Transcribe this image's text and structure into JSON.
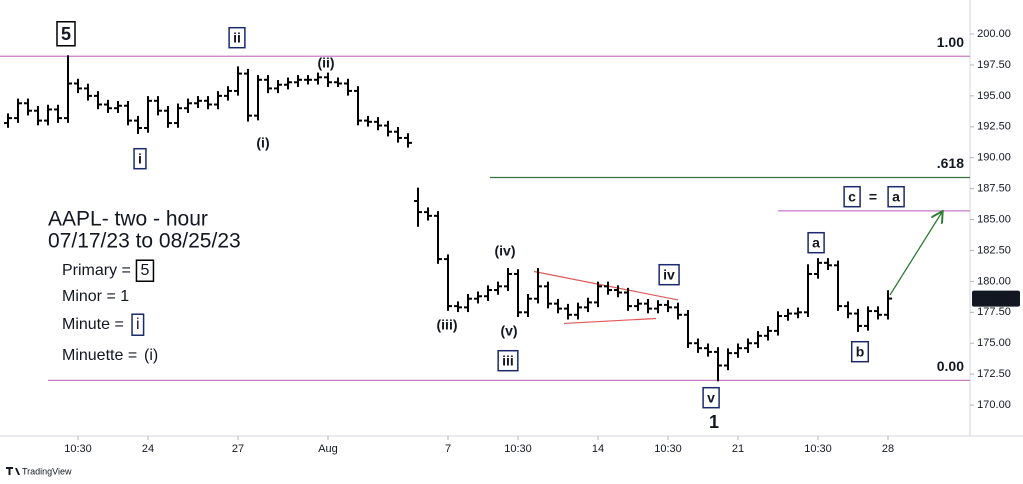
{
  "chart_data": {
    "type": "ohlc",
    "color": "#000000",
    "xlim": [
      -0.8,
      96.2
    ],
    "ylim": [
      167.5,
      202.75
    ],
    "yticks": [
      {
        "value": 170,
        "label": "170.00"
      },
      {
        "value": 172.5,
        "label": "172.50"
      },
      {
        "value": 175,
        "label": "175.00"
      },
      {
        "value": 177.5,
        "label": "177.50"
      },
      {
        "value": 180,
        "label": "180.00"
      },
      {
        "value": 182.5,
        "label": "182.50"
      },
      {
        "value": 185,
        "label": "185.00"
      },
      {
        "value": 187.5,
        "label": "187.50"
      },
      {
        "value": 190,
        "label": "190.00"
      },
      {
        "value": 192.5,
        "label": "192.50"
      },
      {
        "value": 195,
        "label": "195.00"
      },
      {
        "value": 197.5,
        "label": "197.50"
      },
      {
        "value": 200,
        "label": "200.00"
      }
    ],
    "xticks": [
      {
        "value": 7,
        "label": "10:30"
      },
      {
        "value": 14,
        "label": "24"
      },
      {
        "value": 23,
        "label": "27"
      },
      {
        "value": 32,
        "label": "Aug"
      },
      {
        "value": 44,
        "label": "7"
      },
      {
        "value": 51,
        "label": "10:30"
      },
      {
        "value": 59,
        "label": "14"
      },
      {
        "value": 66,
        "label": "10:30"
      },
      {
        "value": 73,
        "label": "21"
      },
      {
        "value": 81,
        "label": "10:30"
      },
      {
        "value": 88,
        "label": "28"
      }
    ],
    "open": [
      192.8,
      193.2,
      194.4,
      193.8,
      193.0,
      193.9,
      193.2,
      196.0,
      195.6,
      195.0,
      194.3,
      194.0,
      194.2,
      193.0,
      192.4,
      194.6,
      193.8,
      192.8,
      194.0,
      194.4,
      194.6,
      194.3,
      195.0,
      195.4,
      196.8,
      193.4,
      196.3,
      195.6,
      195.9,
      196.1,
      196.3,
      196.3,
      196.5,
      196.1,
      196.0,
      195.4,
      193.0,
      192.9,
      192.6,
      192.1,
      191.6,
      186.5,
      185.6,
      185.3,
      181.8,
      178.0,
      177.9,
      178.6,
      178.8,
      179.3,
      179.6,
      180.6,
      177.5,
      178.6,
      179.6,
      178.2,
      177.8,
      177.3,
      177.9,
      178.3,
      179.6,
      179.3,
      179.1,
      178.0,
      178.2,
      177.8,
      178.1,
      177.9,
      177.3,
      175.0,
      174.6,
      174.3,
      173.2,
      174.2,
      174.6,
      175.0,
      175.6,
      176.0,
      177.2,
      177.4,
      177.5,
      180.6,
      181.5,
      181.3,
      178.0,
      177.4,
      176.4,
      177.6,
      177.3
    ],
    "high": [
      193.5,
      194.7,
      194.7,
      194.1,
      194.2,
      194.2,
      198.2,
      196.3,
      195.9,
      195.3,
      194.6,
      194.5,
      194.5,
      193.3,
      194.9,
      194.9,
      194.1,
      194.3,
      194.7,
      194.9,
      194.9,
      195.3,
      195.7,
      197.3,
      197.1,
      196.6,
      196.6,
      196.2,
      196.4,
      196.6,
      196.6,
      196.8,
      196.8,
      196.4,
      196.3,
      195.7,
      193.3,
      193.2,
      192.9,
      192.4,
      191.9,
      187.5,
      185.9,
      185.6,
      182.1,
      178.3,
      178.9,
      179.1,
      179.6,
      179.9,
      181.0,
      180.9,
      178.9,
      181.0,
      179.9,
      178.5,
      178.1,
      178.2,
      178.6,
      179.9,
      179.9,
      179.6,
      179.4,
      178.5,
      178.5,
      178.4,
      178.4,
      178.2,
      177.6,
      175.3,
      174.9,
      174.6,
      174.5,
      174.9,
      175.3,
      175.9,
      176.3,
      177.5,
      177.7,
      177.8,
      181.3,
      181.8,
      181.8,
      181.6,
      178.3,
      177.7,
      177.9,
      177.9,
      179.2
    ],
    "low": [
      192.5,
      192.9,
      193.5,
      192.7,
      192.7,
      192.9,
      192.9,
      195.3,
      194.7,
      194.0,
      193.7,
      193.7,
      192.7,
      192.0,
      192.1,
      193.5,
      192.5,
      192.5,
      193.7,
      194.1,
      194.0,
      194.0,
      194.7,
      195.1,
      193.0,
      193.1,
      195.3,
      195.3,
      195.6,
      195.8,
      196.0,
      196.0,
      195.8,
      195.8,
      195.1,
      192.7,
      192.6,
      192.3,
      191.8,
      191.3,
      190.9,
      184.5,
      185.0,
      181.5,
      177.7,
      177.6,
      177.6,
      178.3,
      178.5,
      179.0,
      179.3,
      177.2,
      177.2,
      178.3,
      177.9,
      177.5,
      177.0,
      177.0,
      177.6,
      178.0,
      179.0,
      178.8,
      177.7,
      177.7,
      177.5,
      177.5,
      177.6,
      177.0,
      174.7,
      174.3,
      174.0,
      172.0,
      172.9,
      173.9,
      174.3,
      174.7,
      175.3,
      175.7,
      176.9,
      177.1,
      177.2,
      180.3,
      181.0,
      177.7,
      177.1,
      176.0,
      176.1,
      177.0,
      177.0
    ],
    "close": [
      193.2,
      194.4,
      193.8,
      193.0,
      193.9,
      193.2,
      196.0,
      195.6,
      195.0,
      194.3,
      194.0,
      194.2,
      193.0,
      192.4,
      194.6,
      193.8,
      192.8,
      194.0,
      194.4,
      194.6,
      194.3,
      195.0,
      195.4,
      196.8,
      193.4,
      196.3,
      195.6,
      195.9,
      196.1,
      196.3,
      196.3,
      196.5,
      196.1,
      196.0,
      195.4,
      193.0,
      192.9,
      192.6,
      192.1,
      191.6,
      191.2,
      185.6,
      185.3,
      181.8,
      178.0,
      177.9,
      178.6,
      178.8,
      179.3,
      179.6,
      180.6,
      177.5,
      178.6,
      179.6,
      178.2,
      177.8,
      177.3,
      177.9,
      178.3,
      179.6,
      179.3,
      179.1,
      178.0,
      178.2,
      177.8,
      178.1,
      177.9,
      177.3,
      175.0,
      174.6,
      174.3,
      173.2,
      174.2,
      174.6,
      175.0,
      175.6,
      176.0,
      177.2,
      177.4,
      177.5,
      180.6,
      181.5,
      181.3,
      178.0,
      177.4,
      176.4,
      177.6,
      177.3,
      178.61
    ],
    "levels": [
      {
        "label": "1.00",
        "value": 198.2,
        "from_x": -0.8,
        "color": "#c77dc4"
      },
      {
        "label": ".618",
        "value": 188.4,
        "from_x": 48.2,
        "color": "#3a6e3a"
      },
      {
        "label": "0.00",
        "value": 172.0,
        "from_x": 4.0,
        "color": "#c77dc4"
      }
    ],
    "target_line": {
      "value": 185.7,
      "from_x": 77,
      "color": "#c77dc4"
    },
    "trendlines": [
      {
        "from": [
          52.6,
          180.8
        ],
        "to": [
          67,
          178.5
        ]
      },
      {
        "from": [
          55.6,
          176.6
        ],
        "to": [
          64.8,
          177.0
        ]
      }
    ],
    "trendline_color": "#e05a5a",
    "arrow": {
      "from": [
        88.2,
        178.9
      ],
      "to": [
        93.4,
        185.6
      ],
      "color": "#2e7d32"
    },
    "annotations": [
      {
        "text": "5",
        "style": "box-black"
      },
      {
        "text": "ii",
        "style": "box-blue"
      },
      {
        "text": "(ii)",
        "style": "blue"
      },
      {
        "text": "i",
        "style": "box-blue"
      },
      {
        "text": "(i)",
        "style": "blue"
      },
      {
        "text": "(iii)",
        "style": "blue"
      },
      {
        "text": "(iv)",
        "style": "blue"
      },
      {
        "text": "(v)",
        "style": "blue"
      },
      {
        "text": "iii",
        "style": "box-blue"
      },
      {
        "text": "iv",
        "style": "box-blue"
      },
      {
        "text": "v",
        "style": "box-blue"
      },
      {
        "text": "1",
        "style": "black"
      },
      {
        "text": "a",
        "style": "box-blue"
      },
      {
        "text": "b",
        "style": "box-blue"
      },
      {
        "text": "c",
        "style": "box-blue"
      },
      {
        "text": "=",
        "style": "black"
      },
      {
        "text": "a",
        "style": "box-blue"
      }
    ],
    "info": {
      "title": "AAPL- two - hour",
      "subtitle": "07/17/23 to 08/25/23",
      "lines": [
        {
          "label": "Primary =",
          "mark": "5",
          "style": "box-black"
        },
        {
          "label": "Minor = 1"
        },
        {
          "label": "Minute =",
          "mark": "i",
          "style": "box-blue"
        },
        {
          "label": "Minuette =",
          "mark": "(i)",
          "style": "blue"
        }
      ]
    },
    "footer": "TradingView"
  }
}
